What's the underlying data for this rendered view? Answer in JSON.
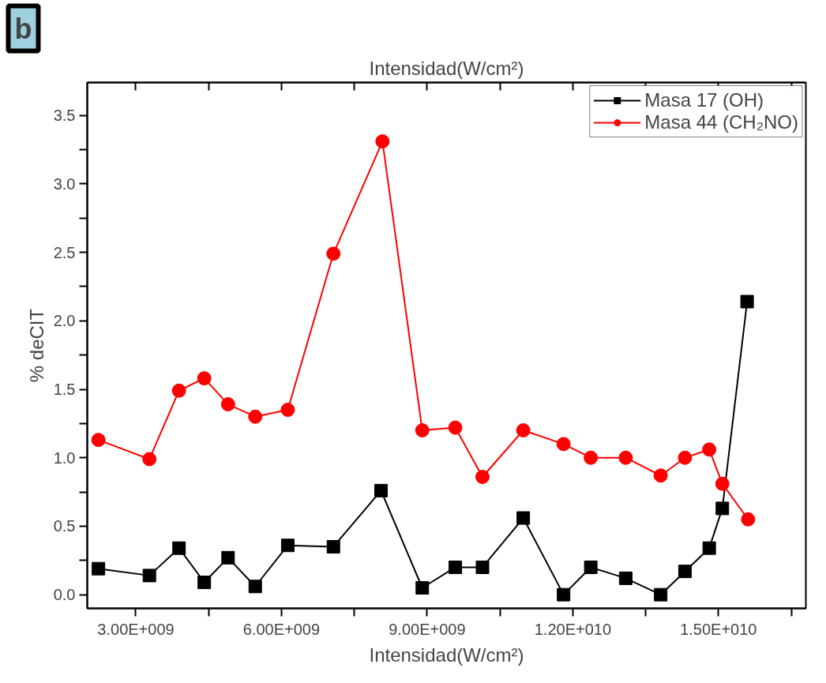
{
  "chart_data": {
    "type": "line",
    "xlabel": "Intensidad(W/cm²)",
    "ylabel": "% deCIT",
    "x2label": "Intensidad(W/cm²)",
    "annotations": [
      "b"
    ],
    "xlim": [
      2000000000.0,
      16800000000.0
    ],
    "ylim": [
      -0.1,
      3.74
    ],
    "xticks": [
      {
        "value": 3000000000.0,
        "label": "3.00E+009"
      },
      {
        "value": 4500000000.0,
        "label": null
      },
      {
        "value": 6000000000.0,
        "label": "6.00E+009"
      },
      {
        "value": 7500000000.0,
        "label": null
      },
      {
        "value": 9000000000.0,
        "label": "9.00E+009"
      },
      {
        "value": 10500000000.0,
        "label": null
      },
      {
        "value": 12000000000.0,
        "label": "1.20E+010"
      },
      {
        "value": 13500000000.0,
        "label": null
      },
      {
        "value": 15000000000.0,
        "label": "1.50E+010"
      },
      {
        "value": 16500000000.0,
        "label": null
      }
    ],
    "yticks": [
      {
        "value": 0,
        "label": "0.0"
      },
      {
        "value": 0.25,
        "label": null
      },
      0.5,
      {
        "value": 0.75,
        "label": null
      },
      {
        "value": 1,
        "label": "1.0"
      },
      {
        "value": 1.25,
        "label": null
      },
      1.5,
      {
        "value": 1.75,
        "label": null
      },
      {
        "value": 2,
        "label": "2.0"
      },
      {
        "value": 2.25,
        "label": null
      },
      2.5,
      {
        "value": 2.75,
        "label": null
      },
      {
        "value": 3,
        "label": "3.0"
      },
      {
        "value": 3.25,
        "label": null
      },
      3.5
    ],
    "grid": false,
    "legend": "top right",
    "line_style": "solid",
    "series": [
      {
        "name": "Masa 17 (OH)",
        "color": "#000000",
        "marker": "square",
        "x": [
          2230000000.0,
          3280000000.0,
          3890000000.0,
          4410000000.0,
          4900000000.0,
          5460000000.0,
          6130000000.0,
          7070000000.0,
          8050000000.0,
          8900000000.0,
          9580000000.0,
          10140000000.0,
          10980000000.0,
          11810000000.0,
          12370000000.0,
          13090000000.0,
          13810000000.0,
          14310000000.0,
          14810000000.0,
          15080000000.0,
          15590000000.0
        ],
        "values": [
          0.19,
          0.14,
          0.34,
          0.09,
          0.27,
          0.06,
          0.36,
          0.35,
          0.76,
          0.05,
          0.2,
          0.2,
          0.56,
          0.0,
          0.2,
          0.12,
          0.0,
          0.17,
          0.34,
          0.63,
          2.14
        ]
      },
      {
        "name": "Masa 44 (CH₂NO)",
        "color": "#ff0000",
        "marker": "circle",
        "x": [
          2230000000.0,
          3280000000.0,
          3890000000.0,
          4410000000.0,
          4900000000.0,
          5460000000.0,
          6130000000.0,
          7070000000.0,
          8080000000.0,
          8900000000.0,
          9580000000.0,
          10140000000.0,
          10980000000.0,
          11810000000.0,
          12370000000.0,
          13090000000.0,
          13810000000.0,
          14310000000.0,
          14810000000.0,
          15080000000.0,
          15610000000.0
        ],
        "values": [
          1.13,
          0.99,
          1.49,
          1.58,
          1.39,
          1.3,
          1.35,
          2.49,
          3.31,
          1.2,
          1.22,
          0.86,
          1.2,
          1.1,
          1.0,
          1.0,
          0.87,
          1.0,
          1.06,
          0.81,
          0.55
        ]
      }
    ]
  }
}
